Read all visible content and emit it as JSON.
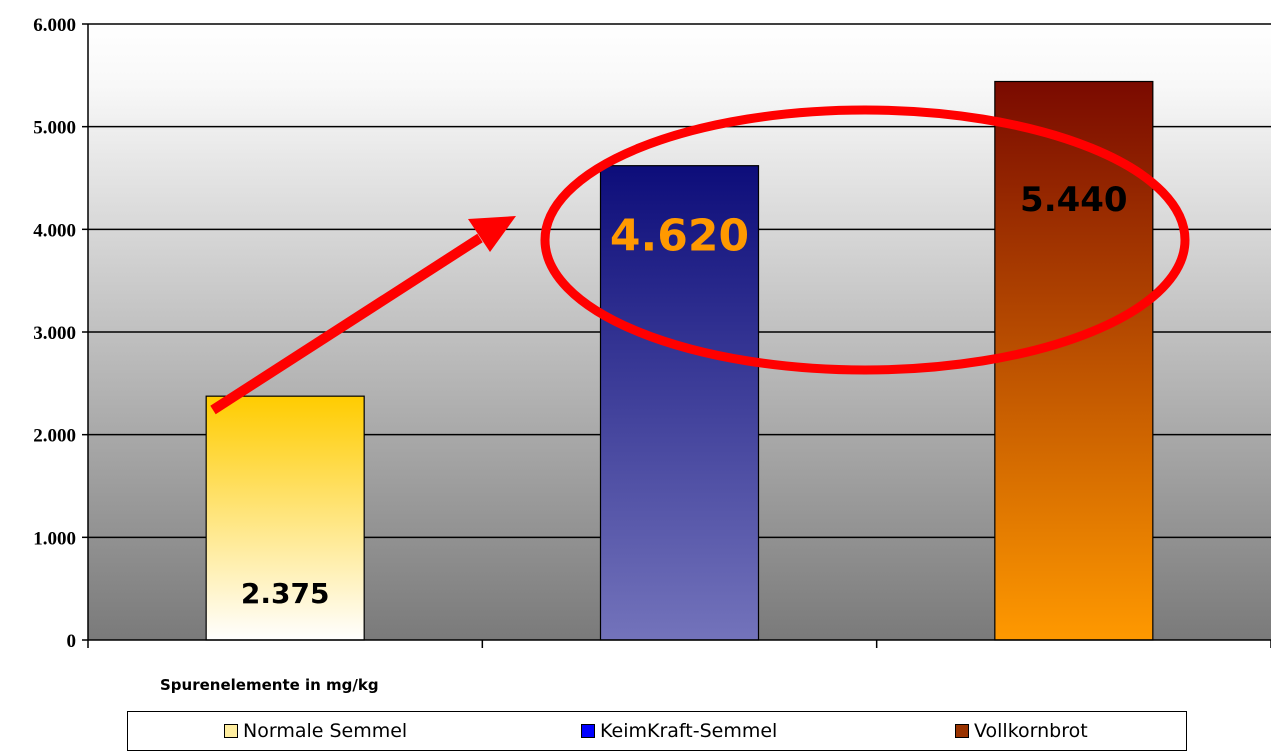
{
  "chart_data": {
    "type": "bar",
    "categories": [
      "Normale Semmel",
      "KeimKraft-Semmel",
      "Vollkornbrot"
    ],
    "values": [
      2375,
      4620,
      5440
    ],
    "value_labels": [
      "2.375",
      "4.620",
      "5.440"
    ],
    "xlabel": "Spurenelemente in mg/kg",
    "ylabel": "",
    "ylim": [
      0,
      6000
    ],
    "yticks": [
      0,
      1000,
      2000,
      3000,
      4000,
      5000,
      6000
    ],
    "ytick_labels": [
      "0",
      "1.000",
      "2.000",
      "3.000",
      "4.000",
      "5.000",
      "6.000"
    ],
    "grid": true,
    "legend": {
      "placement": "bottom",
      "entries": [
        "Normale Semmel",
        "KeimKraft-Semmel",
        "Vollkornbrot"
      ]
    },
    "colors": {
      "normale_top": "#ffcc00",
      "normale_bottom": "#ffffff",
      "keimkraft_top": "#0d0d7a",
      "keimkraft_bottom": "#7373bb",
      "vollkorn_top": "#7a0a00",
      "vollkorn_bottom": "#ff9900",
      "highlight_label": "#ff9900",
      "annotation": "#ff0000",
      "legend_normale": "#ffeea0",
      "legend_keimkraft": "#0000ff",
      "legend_vollkorn": "#993300"
    },
    "annotations": [
      "arrow from Normale Semmel to KeimKraft-Semmel",
      "ellipse highlighting KeimKraft-Semmel value"
    ]
  }
}
